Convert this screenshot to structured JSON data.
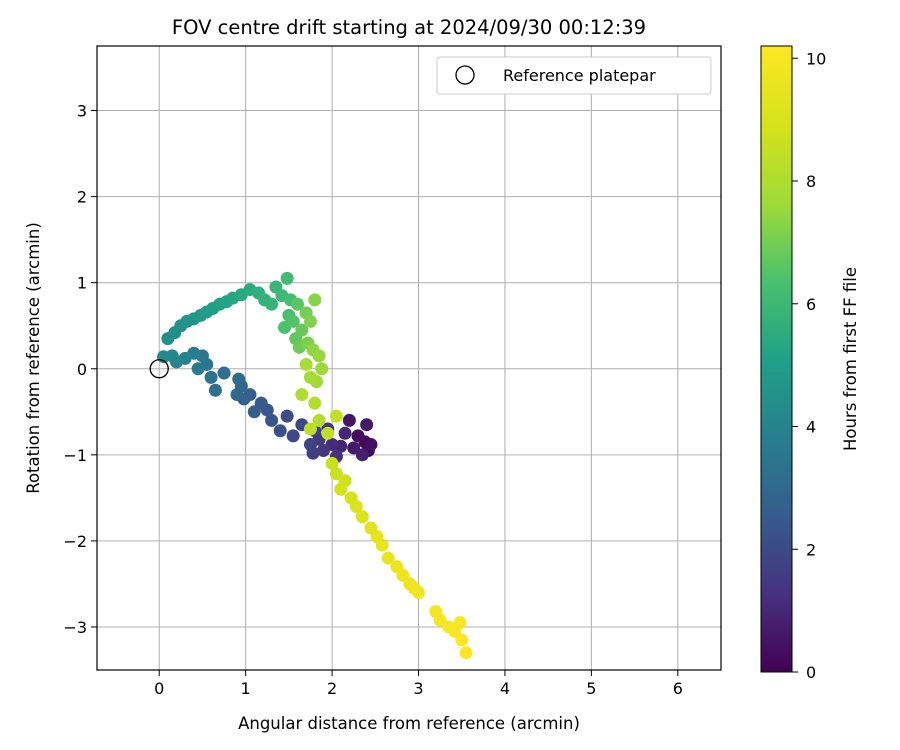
{
  "chart_data": {
    "type": "scatter",
    "title": "FOV centre drift starting at 2024/09/30 00:12:39",
    "xlabel": "Angular distance from reference (arcmin)",
    "ylabel": "Rotation from reference (arcmin)",
    "xlim": [
      -0.72,
      6.5
    ],
    "ylim": [
      -3.5,
      3.75
    ],
    "xticks": [
      0,
      1,
      2,
      3,
      4,
      5,
      6
    ],
    "yticks": [
      -3,
      -2,
      -1,
      0,
      1,
      2,
      3
    ],
    "grid": true,
    "legend": {
      "placement": "top-right",
      "entries": [
        "Reference platepar"
      ]
    },
    "reference_point": {
      "label": "Reference platepar",
      "x": 0,
      "y": 0
    },
    "colorbar": {
      "label": "Hours from first FF file",
      "colormap": "viridis",
      "range": [
        0,
        10.2
      ],
      "ticks": [
        0,
        2,
        4,
        6,
        8,
        10
      ]
    },
    "series": [
      {
        "color_by": "hours",
        "points": [
          {
            "x": 2.38,
            "y": -0.85,
            "c": 0.1
          },
          {
            "x": 2.42,
            "y": -0.95,
            "c": 0.2
          },
          {
            "x": 2.3,
            "y": -0.78,
            "c": 0.3
          },
          {
            "x": 2.45,
            "y": -0.88,
            "c": 0.4
          },
          {
            "x": 2.2,
            "y": -0.6,
            "c": 0.5
          },
          {
            "x": 2.4,
            "y": -0.65,
            "c": 0.6
          },
          {
            "x": 2.25,
            "y": -0.92,
            "c": 0.7
          },
          {
            "x": 2.35,
            "y": -1.0,
            "c": 0.8
          },
          {
            "x": 2.1,
            "y": -0.9,
            "c": 0.9
          },
          {
            "x": 2.15,
            "y": -0.75,
            "c": 1.0
          },
          {
            "x": 2.0,
            "y": -0.88,
            "c": 1.1
          },
          {
            "x": 2.05,
            "y": -1.02,
            "c": 1.2
          },
          {
            "x": 1.95,
            "y": -0.7,
            "c": 1.3
          },
          {
            "x": 1.9,
            "y": -0.95,
            "c": 1.4
          },
          {
            "x": 1.85,
            "y": -0.82,
            "c": 1.5
          },
          {
            "x": 1.78,
            "y": -0.98,
            "c": 1.6
          },
          {
            "x": 1.8,
            "y": -0.72,
            "c": 1.7
          },
          {
            "x": 1.75,
            "y": -0.88,
            "c": 1.8
          },
          {
            "x": 1.65,
            "y": -0.65,
            "c": 1.9
          },
          {
            "x": 1.55,
            "y": -0.78,
            "c": 2.0
          },
          {
            "x": 1.48,
            "y": -0.55,
            "c": 2.1
          },
          {
            "x": 1.4,
            "y": -0.72,
            "c": 2.2
          },
          {
            "x": 1.3,
            "y": -0.6,
            "c": 2.3
          },
          {
            "x": 1.25,
            "y": -0.48,
            "c": 2.4
          },
          {
            "x": 1.18,
            "y": -0.4,
            "c": 2.5
          },
          {
            "x": 1.1,
            "y": -0.5,
            "c": 2.6
          },
          {
            "x": 1.05,
            "y": -0.3,
            "c": 2.7
          },
          {
            "x": 0.98,
            "y": -0.35,
            "c": 2.8
          },
          {
            "x": 0.95,
            "y": -0.2,
            "c": 2.9
          },
          {
            "x": 0.9,
            "y": -0.3,
            "c": 3.0
          },
          {
            "x": 0.92,
            "y": -0.12,
            "c": 3.1
          },
          {
            "x": 0.75,
            "y": -0.05,
            "c": 3.2
          },
          {
            "x": 0.65,
            "y": -0.25,
            "c": 3.3
          },
          {
            "x": 0.6,
            "y": -0.1,
            "c": 3.4
          },
          {
            "x": 0.55,
            "y": 0.05,
            "c": 3.5
          },
          {
            "x": 0.5,
            "y": 0.15,
            "c": 3.6
          },
          {
            "x": 0.45,
            "y": 0.0,
            "c": 3.7
          },
          {
            "x": 0.4,
            "y": 0.18,
            "c": 3.8
          },
          {
            "x": 0.3,
            "y": 0.12,
            "c": 3.9
          },
          {
            "x": 0.2,
            "y": 0.08,
            "c": 4.0
          },
          {
            "x": 0.15,
            "y": 0.15,
            "c": 4.1
          },
          {
            "x": 0.05,
            "y": 0.14,
            "c": 4.2
          },
          {
            "x": 0.1,
            "y": 0.35,
            "c": 4.3
          },
          {
            "x": 0.18,
            "y": 0.42,
            "c": 4.4
          },
          {
            "x": 0.25,
            "y": 0.5,
            "c": 4.5
          },
          {
            "x": 0.32,
            "y": 0.55,
            "c": 4.6
          },
          {
            "x": 0.4,
            "y": 0.58,
            "c": 4.7
          },
          {
            "x": 0.48,
            "y": 0.62,
            "c": 4.8
          },
          {
            "x": 0.55,
            "y": 0.66,
            "c": 4.9
          },
          {
            "x": 0.62,
            "y": 0.7,
            "c": 5.0
          },
          {
            "x": 0.7,
            "y": 0.75,
            "c": 5.1
          },
          {
            "x": 0.78,
            "y": 0.78,
            "c": 5.2
          },
          {
            "x": 0.85,
            "y": 0.82,
            "c": 5.3
          },
          {
            "x": 0.95,
            "y": 0.86,
            "c": 5.4
          },
          {
            "x": 1.05,
            "y": 0.92,
            "c": 5.5
          },
          {
            "x": 1.15,
            "y": 0.88,
            "c": 5.6
          },
          {
            "x": 1.22,
            "y": 0.8,
            "c": 5.7
          },
          {
            "x": 1.3,
            "y": 0.75,
            "c": 5.8
          },
          {
            "x": 1.35,
            "y": 0.95,
            "c": 5.9
          },
          {
            "x": 1.42,
            "y": 0.85,
            "c": 6.0
          },
          {
            "x": 1.48,
            "y": 1.05,
            "c": 6.1
          },
          {
            "x": 1.52,
            "y": 0.8,
            "c": 6.2
          },
          {
            "x": 1.5,
            "y": 0.62,
            "c": 6.3
          },
          {
            "x": 1.45,
            "y": 0.48,
            "c": 6.4
          },
          {
            "x": 1.55,
            "y": 0.55,
            "c": 6.5
          },
          {
            "x": 1.6,
            "y": 0.75,
            "c": 6.6
          },
          {
            "x": 1.58,
            "y": 0.35,
            "c": 6.7
          },
          {
            "x": 1.65,
            "y": 0.45,
            "c": 6.8
          },
          {
            "x": 1.62,
            "y": 0.25,
            "c": 6.9
          },
          {
            "x": 1.7,
            "y": 0.65,
            "c": 7.0
          },
          {
            "x": 1.72,
            "y": 0.3,
            "c": 7.1
          },
          {
            "x": 1.75,
            "y": 0.55,
            "c": 7.2
          },
          {
            "x": 1.8,
            "y": 0.8,
            "c": 7.3
          },
          {
            "x": 1.78,
            "y": 0.22,
            "c": 7.4
          },
          {
            "x": 1.85,
            "y": 0.15,
            "c": 7.5
          },
          {
            "x": 1.88,
            "y": 0.0,
            "c": 7.6
          },
          {
            "x": 1.82,
            "y": -0.15,
            "c": 7.7
          },
          {
            "x": 1.75,
            "y": -0.1,
            "c": 7.8
          },
          {
            "x": 1.7,
            "y": 0.05,
            "c": 7.9
          },
          {
            "x": 1.65,
            "y": -0.3,
            "c": 8.0
          },
          {
            "x": 1.8,
            "y": -0.4,
            "c": 8.1
          },
          {
            "x": 1.85,
            "y": -0.6,
            "c": 8.2
          },
          {
            "x": 1.75,
            "y": -0.7,
            "c": 8.3
          },
          {
            "x": 1.95,
            "y": -0.75,
            "c": 8.4
          },
          {
            "x": 2.05,
            "y": -0.55,
            "c": 8.5
          },
          {
            "x": 2.0,
            "y": -1.1,
            "c": 8.6
          },
          {
            "x": 2.05,
            "y": -1.22,
            "c": 8.7
          },
          {
            "x": 2.15,
            "y": -1.3,
            "c": 8.8
          },
          {
            "x": 2.1,
            "y": -1.4,
            "c": 8.9
          },
          {
            "x": 2.22,
            "y": -1.5,
            "c": 9.0
          },
          {
            "x": 2.28,
            "y": -1.6,
            "c": 9.1
          },
          {
            "x": 2.35,
            "y": -1.72,
            "c": 9.2
          },
          {
            "x": 2.45,
            "y": -1.85,
            "c": 9.3
          },
          {
            "x": 2.52,
            "y": -1.95,
            "c": 9.4
          },
          {
            "x": 2.58,
            "y": -2.05,
            "c": 9.5
          },
          {
            "x": 2.65,
            "y": -2.2,
            "c": 9.6
          },
          {
            "x": 2.75,
            "y": -2.3,
            "c": 9.65
          },
          {
            "x": 2.82,
            "y": -2.4,
            "c": 9.7
          },
          {
            "x": 2.9,
            "y": -2.5,
            "c": 9.75
          },
          {
            "x": 2.95,
            "y": -2.55,
            "c": 9.8
          },
          {
            "x": 3.0,
            "y": -2.6,
            "c": 9.85
          },
          {
            "x": 3.2,
            "y": -2.82,
            "c": 9.9
          },
          {
            "x": 3.25,
            "y": -2.92,
            "c": 9.95
          },
          {
            "x": 3.35,
            "y": -3.0,
            "c": 10.0
          },
          {
            "x": 3.42,
            "y": -3.05,
            "c": 10.05
          },
          {
            "x": 3.48,
            "y": -2.95,
            "c": 10.1
          },
          {
            "x": 3.5,
            "y": -3.15,
            "c": 10.15
          },
          {
            "x": 3.55,
            "y": -3.3,
            "c": 10.2
          }
        ]
      }
    ]
  }
}
